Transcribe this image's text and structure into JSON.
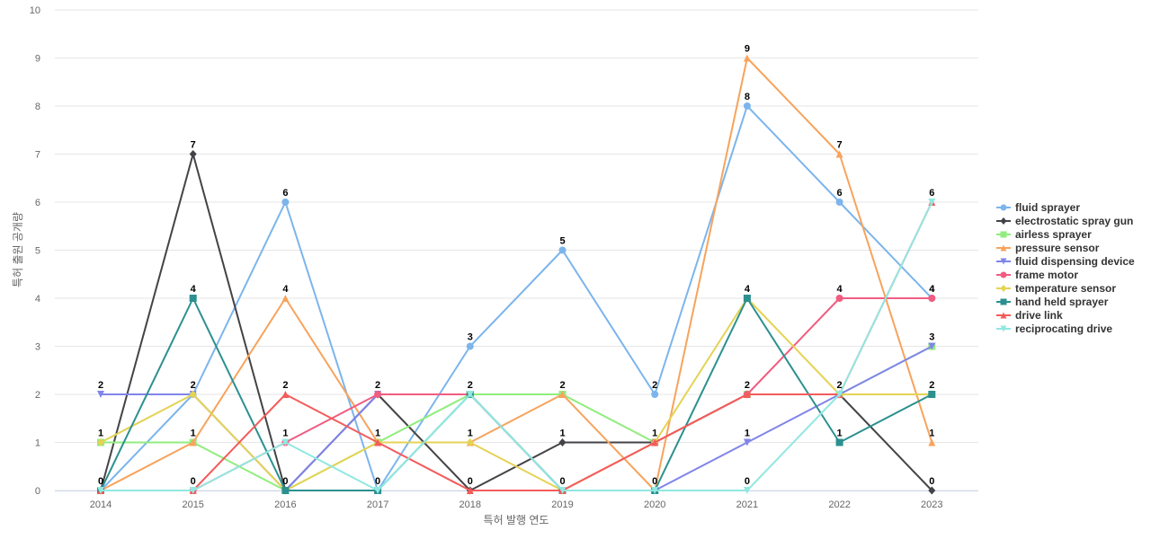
{
  "chart_data": {
    "type": "line",
    "title": "",
    "xlabel": "특허 발행 연도",
    "ylabel": "특허 출원 공개량",
    "ylim": [
      0,
      10
    ],
    "yticks": [
      0,
      1,
      2,
      3,
      4,
      5,
      6,
      7,
      8,
      9,
      10
    ],
    "grid": true,
    "legend_position": "right",
    "categories": [
      "2014",
      "2015",
      "2016",
      "2017",
      "2018",
      "2019",
      "2020",
      "2021",
      "2022",
      "2023"
    ],
    "series": [
      {
        "name": "fluid sprayer",
        "color": "#7cb5ec",
        "marker": "circle",
        "values": [
          0,
          2,
          6,
          0,
          3,
          5,
          2,
          8,
          6,
          4
        ]
      },
      {
        "name": "electrostatic spray gun",
        "color": "#434348",
        "marker": "diamond",
        "values": [
          0,
          7,
          0,
          2,
          0,
          1,
          1,
          2,
          2,
          0
        ]
      },
      {
        "name": "airless sprayer",
        "color": "#90ed7d",
        "marker": "square",
        "values": [
          1,
          1,
          0,
          1,
          2,
          2,
          1,
          2,
          2,
          3
        ]
      },
      {
        "name": "pressure sensor",
        "color": "#f7a35c",
        "marker": "triangle",
        "values": [
          0,
          1,
          4,
          1,
          1,
          2,
          0,
          9,
          7,
          1
        ]
      },
      {
        "name": "fluid dispensing device",
        "color": "#8085e9",
        "marker": "triangle-down",
        "values": [
          2,
          2,
          0,
          2,
          2,
          0,
          0,
          1,
          2,
          3
        ]
      },
      {
        "name": "frame motor",
        "color": "#f15c80",
        "marker": "circle",
        "values": [
          0,
          0,
          1,
          2,
          2,
          0,
          1,
          2,
          4,
          4
        ]
      },
      {
        "name": "temperature sensor",
        "color": "#e4d354",
        "marker": "diamond",
        "values": [
          1,
          2,
          0,
          1,
          1,
          0,
          1,
          4,
          2,
          2
        ]
      },
      {
        "name": "hand held sprayer",
        "color": "#2b908f",
        "marker": "square",
        "values": [
          0,
          4,
          0,
          0,
          2,
          0,
          0,
          4,
          1,
          2
        ]
      },
      {
        "name": "drive link",
        "color": "#f45b5b",
        "marker": "triangle",
        "values": [
          0,
          0,
          2,
          1,
          0,
          0,
          1,
          2,
          2,
          6
        ]
      },
      {
        "name": "reciprocating drive",
        "color": "#91e8e1",
        "marker": "triangle-down",
        "values": [
          0,
          0,
          1,
          0,
          2,
          0,
          0,
          0,
          2,
          6
        ]
      }
    ],
    "data_labels": [
      {
        "series": "fluid sprayer",
        "values": [
          null,
          2,
          6,
          null,
          3,
          5,
          2,
          8,
          6,
          4
        ]
      },
      {
        "series": "electrostatic spray gun",
        "values": [
          0,
          7,
          0,
          null,
          0,
          1,
          1,
          null,
          null,
          0
        ]
      },
      {
        "series": "airless sprayer",
        "values": [
          1,
          1,
          null,
          1,
          2,
          2,
          null,
          null,
          null,
          3
        ]
      },
      {
        "series": "pressure sensor",
        "values": [
          null,
          null,
          4,
          null,
          1,
          null,
          null,
          9,
          7,
          1
        ]
      },
      {
        "series": "fluid dispensing device",
        "values": [
          2,
          null,
          null,
          2,
          null,
          null,
          null,
          1,
          2,
          null
        ]
      },
      {
        "series": "frame motor",
        "values": [
          null,
          null,
          null,
          null,
          null,
          null,
          null,
          2,
          4,
          4
        ]
      },
      {
        "series": "temperature sensor",
        "values": [
          null,
          null,
          null,
          null,
          null,
          null,
          null,
          null,
          null,
          2
        ]
      },
      {
        "series": "hand held sprayer",
        "values": [
          null,
          4,
          null,
          0,
          null,
          0,
          0,
          4,
          1,
          null
        ]
      },
      {
        "series": "drive link",
        "values": [
          null,
          0,
          2,
          null,
          null,
          null,
          null,
          null,
          null,
          6
        ]
      },
      {
        "series": "reciprocating drive",
        "values": [
          null,
          null,
          1,
          null,
          null,
          null,
          null,
          0,
          null,
          null
        ]
      }
    ]
  }
}
